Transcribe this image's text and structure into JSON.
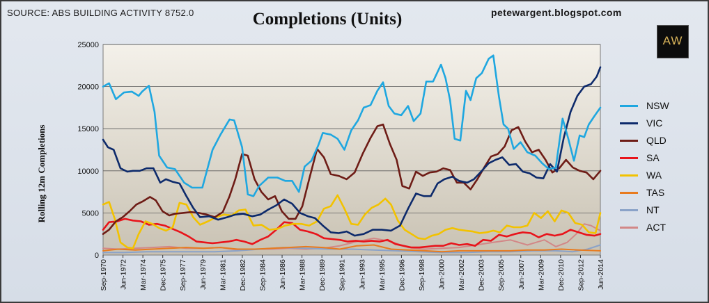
{
  "header": {
    "source": "SOURCE: ABS BUILDING ACTIVITY 8752.0",
    "title": "Completions (Units)",
    "site": "petewargent.blogspot.com",
    "logo_text": "AW"
  },
  "chart_data": {
    "type": "line",
    "title": "Completions (Units)",
    "xlabel": "",
    "ylabel": "Rolling 12m Completions",
    "ylim": [
      0,
      25000
    ],
    "yticks": [
      0,
      5000,
      10000,
      15000,
      20000,
      25000
    ],
    "ytick_labels": [
      "0",
      "5000",
      "10000",
      "15000",
      "20000",
      "25000"
    ],
    "xlim": [
      1970.67,
      2014.42
    ],
    "x_tick_labels": [
      "Sep-1970",
      "Jun-1972",
      "Mar-1974",
      "Dec-1975",
      "Sep-1977",
      "Jun-1979",
      "Mar-1981",
      "Dec-1982",
      "Sep-1984",
      "Jun-1986",
      "Mar-1988",
      "Dec-1989",
      "Sep-1991",
      "Jun-1993",
      "Mar-1995",
      "Dec-1996",
      "Sep-1998",
      "Jun-2000",
      "Mar-2002",
      "Dec-2003",
      "Sep-2005",
      "Jun-2007",
      "Mar-2009",
      "Dec-2010",
      "Sep-2012",
      "Jun-2014"
    ],
    "x_tick_values": [
      1970.67,
      1972.42,
      1974.17,
      1975.92,
      1977.67,
      1979.42,
      1981.17,
      1982.92,
      1984.67,
      1986.42,
      1988.17,
      1989.92,
      1991.67,
      1993.42,
      1995.17,
      1996.92,
      1998.67,
      2000.42,
      2002.17,
      2003.92,
      2005.67,
      2007.42,
      2009.17,
      2010.92,
      2012.67,
      2014.42
    ],
    "grid": true,
    "legend_position": "right",
    "series": [
      {
        "name": "NSW",
        "color": "#1fa7e0",
        "x": [
          1970.67,
          1971.2,
          1971.8,
          1972.5,
          1973.2,
          1973.8,
          1974.1,
          1974.7,
          1975.2,
          1975.6,
          1976.3,
          1977.0,
          1977.8,
          1978.5,
          1979.4,
          1980.3,
          1981.0,
          1981.8,
          1982.2,
          1982.9,
          1983.4,
          1983.9,
          1984.4,
          1985.2,
          1986.0,
          1986.7,
          1987.3,
          1987.9,
          1988.4,
          1989.0,
          1989.6,
          1990.0,
          1990.7,
          1991.3,
          1991.9,
          1992.5,
          1993.1,
          1993.6,
          1994.2,
          1994.8,
          1995.3,
          1995.8,
          1996.3,
          1996.9,
          1997.5,
          1998.0,
          1998.6,
          1999.1,
          1999.7,
          2000.4,
          2000.8,
          2001.2,
          2001.6,
          2002.1,
          2002.6,
          2003.0,
          2003.5,
          2004.0,
          2004.6,
          2005.0,
          2005.5,
          2005.9,
          2006.3,
          2006.8,
          2007.4,
          2008.0,
          2008.7,
          2009.3,
          2009.9,
          2010.5,
          2011.1,
          2011.6,
          2012.1,
          2012.6,
          2013.0,
          2013.4,
          2013.9,
          2014.42
        ],
        "y": [
          20000,
          20400,
          18500,
          19300,
          19400,
          18900,
          19400,
          20100,
          17000,
          11800,
          10400,
          10200,
          8600,
          8000,
          8000,
          12500,
          14300,
          16100,
          16000,
          12800,
          7200,
          7000,
          8200,
          9200,
          9200,
          8800,
          8800,
          7500,
          10500,
          11200,
          13000,
          14500,
          14300,
          13800,
          12500,
          14800,
          16000,
          17500,
          17800,
          19500,
          20500,
          17700,
          16800,
          16600,
          17700,
          15900,
          16800,
          20600,
          20600,
          22600,
          21000,
          18400,
          13800,
          13600,
          19500,
          18400,
          21000,
          21600,
          23300,
          23700,
          18800,
          15500,
          15000,
          12600,
          13400,
          12200,
          11800,
          10900,
          10200,
          10400,
          16200,
          13800,
          11200,
          14200,
          14000,
          15500,
          16500,
          17500
        ]
      },
      {
        "name": "VIC",
        "color": "#0d2a6b",
        "x": [
          1970.67,
          1971.1,
          1971.6,
          1972.2,
          1972.8,
          1973.3,
          1973.9,
          1974.5,
          1975.1,
          1975.7,
          1976.2,
          1976.8,
          1977.4,
          1978.0,
          1978.6,
          1979.2,
          1980.0,
          1980.8,
          1981.6,
          1982.3,
          1983.0,
          1983.8,
          1984.5,
          1985.2,
          1985.9,
          1986.6,
          1987.3,
          1988.0,
          1988.7,
          1989.3,
          1990.0,
          1990.7,
          1991.4,
          1992.1,
          1992.8,
          1993.6,
          1994.4,
          1995.2,
          1996.0,
          1996.8,
          1997.5,
          1998.2,
          1998.9,
          1999.5,
          2000.1,
          2000.7,
          2001.4,
          2002.0,
          2002.7,
          2003.3,
          2004.0,
          2004.6,
          2005.2,
          2005.8,
          2006.4,
          2007.0,
          2007.6,
          2008.2,
          2008.8,
          2009.4,
          2010.0,
          2010.6,
          2011.2,
          2011.8,
          2012.4,
          2013.0,
          2013.6,
          2014.1,
          2014.42
        ],
        "y": [
          13700,
          12800,
          12500,
          10300,
          9900,
          10000,
          10000,
          10300,
          10300,
          8600,
          9000,
          8700,
          8500,
          7000,
          5600,
          4500,
          4600,
          4200,
          4500,
          4800,
          4900,
          4600,
          4800,
          5400,
          5900,
          6600,
          6100,
          5000,
          4600,
          4400,
          3500,
          2700,
          2600,
          2800,
          2300,
          2500,
          3000,
          3000,
          2900,
          3500,
          5500,
          7300,
          7000,
          7000,
          8500,
          9000,
          9300,
          8800,
          8600,
          9000,
          10000,
          10900,
          11300,
          11600,
          10700,
          10800,
          9900,
          9700,
          9200,
          9100,
          10800,
          9900,
          13900,
          17000,
          18900,
          20000,
          20300,
          21200,
          22300
        ]
      },
      {
        "name": "QLD",
        "color": "#6e1c16",
        "x": [
          1970.67,
          1971.2,
          1971.8,
          1972.4,
          1973.0,
          1973.6,
          1974.2,
          1974.8,
          1975.3,
          1975.9,
          1976.5,
          1977.0,
          1977.7,
          1978.4,
          1979.1,
          1979.8,
          1980.5,
          1981.2,
          1981.8,
          1982.3,
          1982.9,
          1983.4,
          1984.0,
          1984.6,
          1985.2,
          1985.8,
          1986.4,
          1987.0,
          1987.6,
          1988.2,
          1988.8,
          1989.5,
          1990.1,
          1990.7,
          1991.4,
          1992.1,
          1992.8,
          1993.5,
          1994.2,
          1994.8,
          1995.3,
          1995.9,
          1996.5,
          1997.0,
          1997.6,
          1998.2,
          1998.8,
          1999.4,
          2000.0,
          2000.6,
          2001.2,
          2001.8,
          2002.4,
          2003.0,
          2003.6,
          2004.2,
          2004.8,
          2005.4,
          2006.0,
          2006.6,
          2007.2,
          2007.8,
          2008.4,
          2009.0,
          2009.6,
          2010.2,
          2010.8,
          2011.4,
          2012.0,
          2012.6,
          2013.2,
          2013.8,
          2014.42
        ],
        "y": [
          2500,
          3000,
          4000,
          4500,
          5200,
          6000,
          6400,
          6900,
          6500,
          5200,
          4700,
          4900,
          5000,
          5100,
          5000,
          4800,
          4500,
          5100,
          7000,
          9000,
          12000,
          11800,
          9000,
          7500,
          6600,
          7000,
          5200,
          4300,
          4300,
          5800,
          9000,
          12600,
          11600,
          9600,
          9400,
          9000,
          9800,
          12000,
          13900,
          15300,
          15500,
          13200,
          11300,
          8200,
          7900,
          9900,
          9400,
          9800,
          9900,
          10300,
          10100,
          8600,
          8600,
          7800,
          9000,
          10400,
          11700,
          12000,
          12900,
          14800,
          15200,
          13500,
          12200,
          12500,
          11300,
          9800,
          10300,
          11300,
          10400,
          10000,
          9800,
          9000,
          10000
        ]
      },
      {
        "name": "SA",
        "color": "#e8141b",
        "x": [
          1970.67,
          1971.2,
          1971.9,
          1972.6,
          1973.3,
          1974.0,
          1974.7,
          1975.4,
          1976.1,
          1976.8,
          1977.5,
          1978.2,
          1978.9,
          1979.6,
          1980.3,
          1981.0,
          1981.7,
          1982.4,
          1983.1,
          1983.8,
          1984.5,
          1985.2,
          1985.9,
          1986.6,
          1987.3,
          1988.0,
          1988.7,
          1989.4,
          1990.1,
          1990.8,
          1991.5,
          1992.2,
          1992.9,
          1993.6,
          1994.3,
          1995.0,
          1995.7,
          1996.4,
          1997.1,
          1997.8,
          1998.5,
          1999.2,
          1999.9,
          2000.6,
          2001.3,
          2002.0,
          2002.7,
          2003.4,
          2004.1,
          2004.8,
          2005.5,
          2006.2,
          2006.9,
          2007.6,
          2008.3,
          2009.0,
          2009.7,
          2010.4,
          2011.1,
          2011.8,
          2012.5,
          2013.2,
          2013.9,
          2014.42
        ],
        "y": [
          3000,
          3900,
          4000,
          4300,
          4100,
          4000,
          3600,
          3700,
          3500,
          3100,
          2700,
          2200,
          1600,
          1500,
          1400,
          1500,
          1600,
          1800,
          1600,
          1300,
          1800,
          2200,
          3000,
          3900,
          3800,
          3000,
          2800,
          2500,
          2000,
          1900,
          1800,
          1600,
          1700,
          1600,
          1700,
          1600,
          1800,
          1300,
          1100,
          900,
          900,
          1000,
          1100,
          1100,
          1400,
          1200,
          1300,
          1100,
          1800,
          1700,
          2400,
          2200,
          2500,
          2700,
          2600,
          2100,
          2500,
          2300,
          2500,
          3000,
          2700,
          2400,
          2300,
          2500
        ]
      },
      {
        "name": "WA",
        "color": "#f2c200",
        "x": [
          1970.67,
          1971.2,
          1971.7,
          1972.2,
          1972.8,
          1973.3,
          1973.8,
          1974.4,
          1975.0,
          1975.6,
          1976.2,
          1976.8,
          1977.4,
          1978.0,
          1978.6,
          1979.2,
          1979.9,
          1980.6,
          1981.3,
          1982.0,
          1982.6,
          1983.2,
          1983.9,
          1984.6,
          1985.3,
          1986.0,
          1986.7,
          1987.4,
          1988.1,
          1988.8,
          1989.5,
          1990.1,
          1990.7,
          1991.3,
          1991.9,
          1992.5,
          1993.1,
          1993.7,
          1994.3,
          1994.9,
          1995.5,
          1996.0,
          1996.6,
          1997.2,
          1997.8,
          1998.4,
          1999.0,
          1999.6,
          2000.2,
          2000.8,
          2001.4,
          2002.0,
          2002.6,
          2003.2,
          2003.8,
          2004.4,
          2005.0,
          2005.6,
          2006.2,
          2006.8,
          2007.4,
          2008.0,
          2008.6,
          2009.2,
          2009.8,
          2010.4,
          2011.0,
          2011.6,
          2012.2,
          2012.8,
          2013.4,
          2014.0,
          2014.42
        ],
        "y": [
          6000,
          6300,
          4300,
          1500,
          900,
          800,
          2500,
          4000,
          3700,
          3200,
          2900,
          3300,
          6200,
          6000,
          4500,
          3600,
          4000,
          4500,
          4800,
          4700,
          5300,
          5400,
          3500,
          3600,
          3000,
          3100,
          3500,
          3700,
          3700,
          3500,
          4000,
          5500,
          5800,
          7100,
          5500,
          3700,
          3600,
          4800,
          5600,
          6000,
          6700,
          6000,
          4100,
          3000,
          2500,
          2000,
          1900,
          2300,
          2500,
          3000,
          3200,
          3000,
          2900,
          2800,
          2600,
          2700,
          2900,
          2700,
          3500,
          3300,
          3300,
          3500,
          5000,
          4400,
          5200,
          4000,
          5300,
          5000,
          3800,
          3600,
          2700,
          2600,
          5000
        ]
      },
      {
        "name": "TAS",
        "color": "#e87b1e",
        "x": [
          1970.67,
          1972.0,
          1973.5,
          1975.0,
          1976.5,
          1978.0,
          1979.5,
          1981.0,
          1982.5,
          1984.0,
          1985.5,
          1987.0,
          1988.5,
          1990.0,
          1991.5,
          1993.0,
          1994.5,
          1996.0,
          1997.5,
          1999.0,
          2000.5,
          2002.0,
          2003.5,
          2005.0,
          2006.5,
          2008.0,
          2009.5,
          2011.0,
          2012.5,
          2014.42
        ],
        "y": [
          500,
          700,
          600,
          700,
          800,
          900,
          800,
          900,
          700,
          700,
          800,
          900,
          1000,
          900,
          700,
          1100,
          1200,
          700,
          600,
          500,
          400,
          500,
          500,
          500,
          500,
          600,
          600,
          700,
          600,
          500
        ]
      },
      {
        "name": "NT",
        "color": "#8aa2c8",
        "x": [
          1970.67,
          1972.5,
          1974.5,
          1976.5,
          1978.5,
          1980.5,
          1982.5,
          1984.5,
          1986.5,
          1988.5,
          1990.5,
          1992.5,
          1994.5,
          1996.5,
          1998.5,
          2000.5,
          2002.5,
          2004.5,
          2006.5,
          2008.5,
          2010.5,
          2012.0,
          2013.3,
          2014.42
        ],
        "y": [
          300,
          300,
          400,
          400,
          400,
          400,
          500,
          700,
          900,
          800,
          700,
          700,
          600,
          500,
          400,
          300,
          300,
          400,
          400,
          500,
          500,
          400,
          700,
          1200
        ]
      },
      {
        "name": "ACT",
        "color": "#d28787",
        "x": [
          1970.67,
          1972.0,
          1973.5,
          1975.0,
          1976.5,
          1978.0,
          1979.5,
          1981.0,
          1982.5,
          1984.0,
          1985.5,
          1987.0,
          1988.5,
          1990.0,
          1991.5,
          1993.0,
          1994.5,
          1996.0,
          1997.5,
          1999.0,
          2000.5,
          2002.0,
          2003.5,
          2005.0,
          2006.5,
          2008.0,
          2009.5,
          2010.5,
          2011.5,
          2012.3,
          2013.0,
          2013.6,
          2014.42
        ],
        "y": [
          800,
          700,
          800,
          900,
          1000,
          800,
          800,
          900,
          600,
          700,
          700,
          800,
          700,
          800,
          1100,
          1600,
          2000,
          1600,
          900,
          700,
          800,
          900,
          1200,
          1500,
          1800,
          1200,
          1800,
          1000,
          1500,
          2500,
          3700,
          3500,
          2900
        ]
      }
    ]
  }
}
